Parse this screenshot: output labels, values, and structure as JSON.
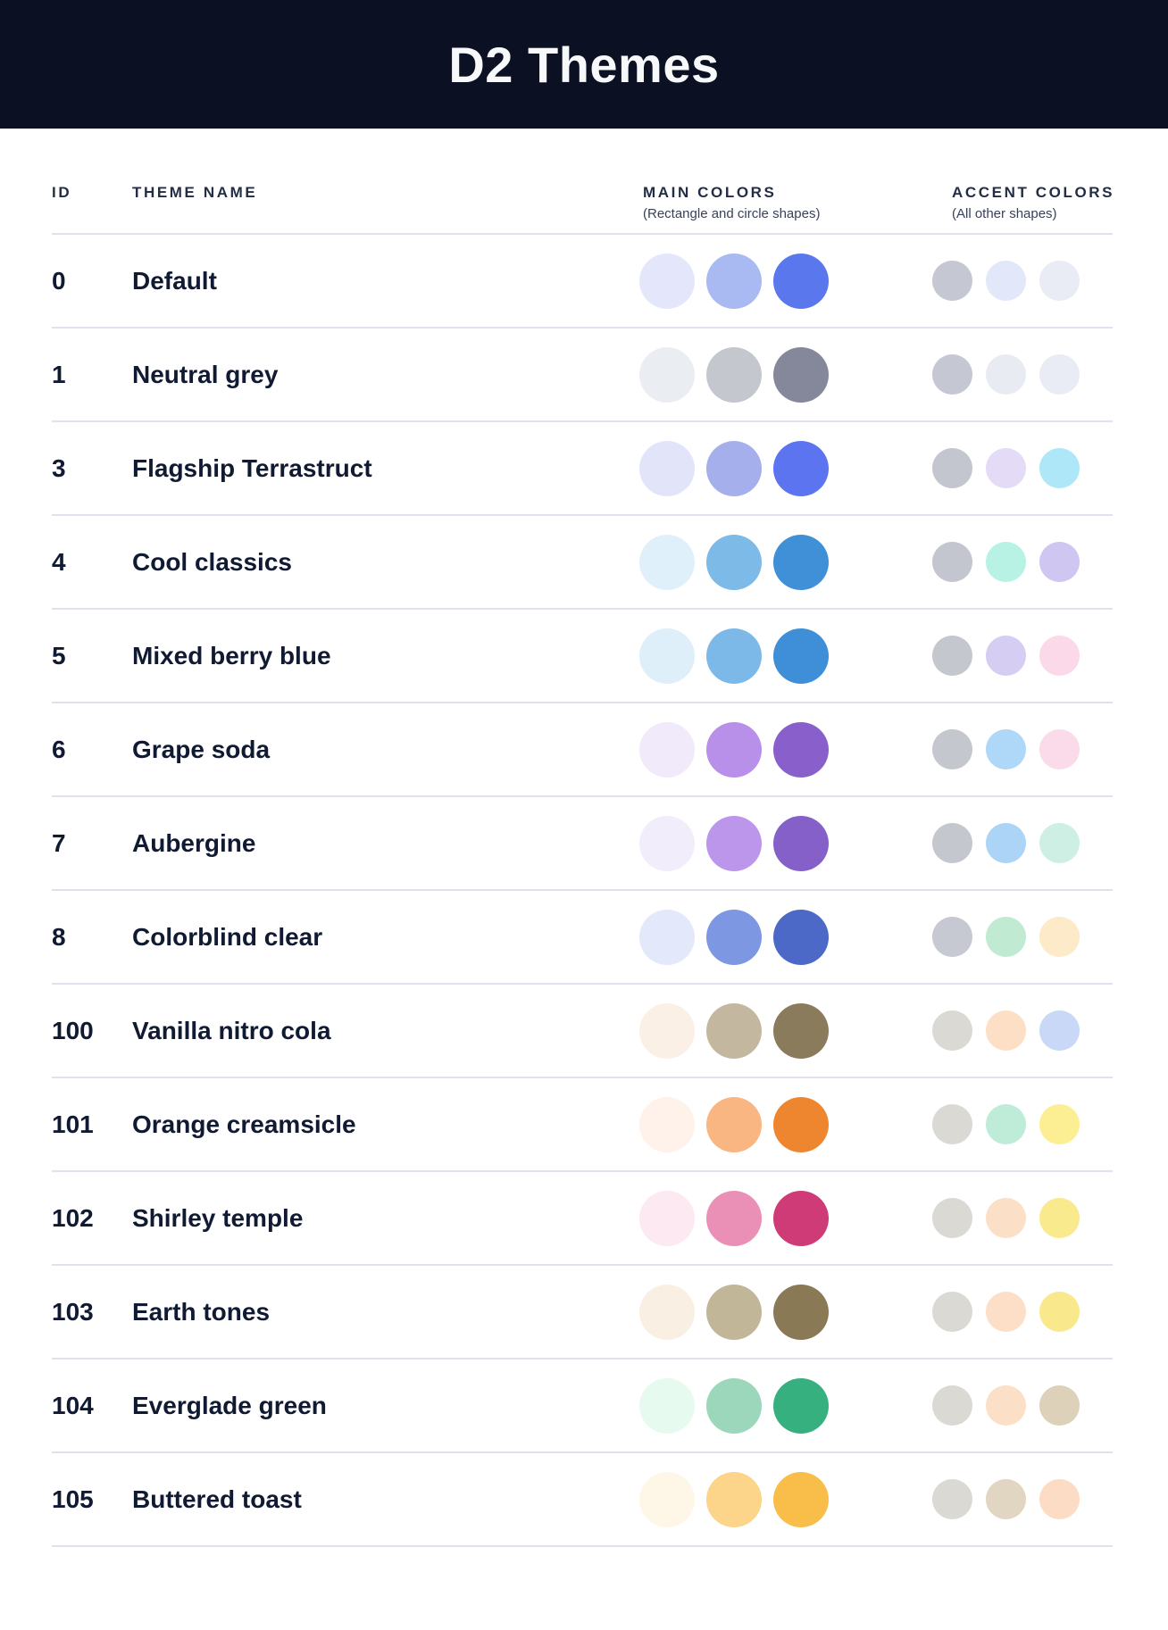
{
  "header": {
    "title": "D2 Themes"
  },
  "palette": {
    "banner_background": "#0B1022",
    "banner_title_text": "#F7F8FA",
    "column_header_text": "#232D45",
    "row_text": "#111A33",
    "divider": "#DFE2EC"
  },
  "table": {
    "columns": {
      "id_label": "ID",
      "name_label": "THEME NAME",
      "main_label": "MAIN COLORS",
      "main_sublabel": "(Rectangle and circle shapes)",
      "accent_label": "ACCENT COLORS",
      "accent_sublabel": "(All other shapes)"
    },
    "rows": [
      {
        "id": "0",
        "name": "Default",
        "main": [
          "#E4E7FB",
          "#A9B9F1",
          "#5B77EE"
        ],
        "accent": [
          "#C5C8D2",
          "#E3E7FA",
          "#E9ECF4"
        ]
      },
      {
        "id": "1",
        "name": "Neutral grey",
        "main": [
          "#EAEDF2",
          "#C4C7CE",
          "#85889B"
        ],
        "accent": [
          "#C5C8D2",
          "#E8EBF2",
          "#E9ECF4"
        ]
      },
      {
        "id": "3",
        "name": "Flagship Terrastruct",
        "main": [
          "#E2E5FA",
          "#A5AFEC",
          "#5D74F0"
        ],
        "accent": [
          "#C3C5CF",
          "#E4DBF6",
          "#AEE8F8"
        ]
      },
      {
        "id": "4",
        "name": "Cool classics",
        "main": [
          "#DFF0FB",
          "#7EBAE8",
          "#4090D8"
        ],
        "accent": [
          "#C3C5CF",
          "#B7F2E5",
          "#D0C6F2"
        ]
      },
      {
        "id": "5",
        "name": "Mixed berry blue",
        "main": [
          "#DFEFFA",
          "#7DB9E8",
          "#3E8ED8"
        ],
        "accent": [
          "#C5C7CF",
          "#D6CDF3",
          "#FBD9E8"
        ]
      },
      {
        "id": "6",
        "name": "Grape soda",
        "main": [
          "#F1EAFA",
          "#B88FE9",
          "#8960CB"
        ],
        "accent": [
          "#C5C7CF",
          "#AFD7F8",
          "#FBDAEA"
        ]
      },
      {
        "id": "7",
        "name": "Aubergine",
        "main": [
          "#F1EDFB",
          "#BB96EA",
          "#8560C8"
        ],
        "accent": [
          "#C5C7CF",
          "#ABD4F6",
          "#CDEFE4"
        ]
      },
      {
        "id": "8",
        "name": "Colorblind clear",
        "main": [
          "#E3E8FA",
          "#7E97E2",
          "#4C69C7"
        ],
        "accent": [
          "#C6C8D2",
          "#C0EAD2",
          "#FCEAC8"
        ]
      },
      {
        "id": "100",
        "name": "Vanilla nitro cola",
        "main": [
          "#FAF0E5",
          "#C3B79F",
          "#8B7B5D"
        ],
        "accent": [
          "#DAD9D4",
          "#FDDFC6",
          "#C9D8F7"
        ]
      },
      {
        "id": "101",
        "name": "Orange creamsicle",
        "main": [
          "#FEF2EA",
          "#F9B682",
          "#EE8630"
        ],
        "accent": [
          "#DAD9D4",
          "#BFECD8",
          "#FCEE92"
        ]
      },
      {
        "id": "102",
        "name": "Shirley temple",
        "main": [
          "#FCE9F1",
          "#EA90B7",
          "#CE3B76"
        ],
        "accent": [
          "#DAD9D4",
          "#FCDFC7",
          "#FAEA8E"
        ]
      },
      {
        "id": "103",
        "name": "Earth tones",
        "main": [
          "#F9EFE3",
          "#C2B699",
          "#897955"
        ],
        "accent": [
          "#DAD9D4",
          "#FCDFC6",
          "#FAE98C"
        ]
      },
      {
        "id": "104",
        "name": "Everglade green",
        "main": [
          "#E7FAF0",
          "#9CD7BC",
          "#37B080"
        ],
        "accent": [
          "#DAD9D4",
          "#FCDFC7",
          "#DDD1BA"
        ]
      },
      {
        "id": "105",
        "name": "Buttered toast",
        "main": [
          "#FEF7E8",
          "#FCD48A",
          "#F8BE49"
        ],
        "accent": [
          "#DAD9D4",
          "#E1D6C1",
          "#FDDCC5"
        ]
      }
    ]
  }
}
